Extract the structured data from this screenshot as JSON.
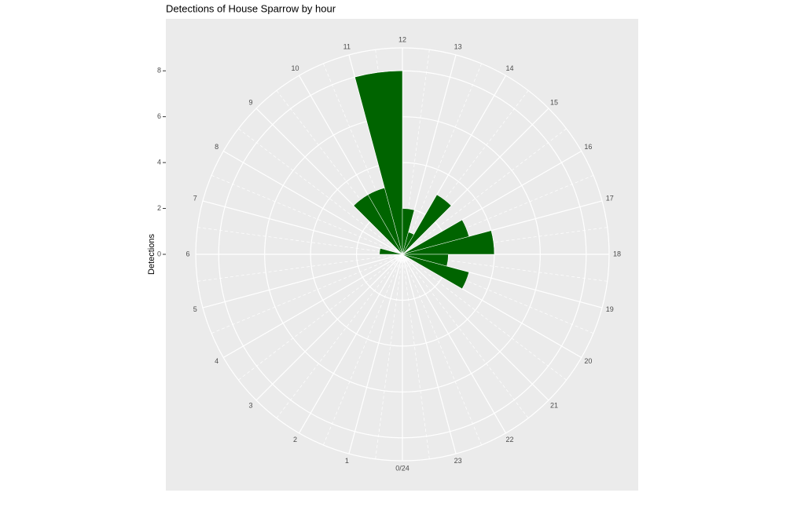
{
  "chart_data": {
    "type": "polar-bar",
    "title": "Detections of House Sparrow by hour",
    "y_label": "Detections",
    "categories": [
      "0/24",
      "1",
      "2",
      "3",
      "4",
      "5",
      "6",
      "7",
      "8",
      "9",
      "10",
      "11",
      "12",
      "13",
      "14",
      "15",
      "16",
      "17",
      "18",
      "19",
      "20",
      "21",
      "22",
      "23"
    ],
    "values": [
      0,
      0,
      0,
      0,
      0,
      0,
      1,
      0,
      0,
      3,
      3,
      8,
      2,
      1,
      3,
      0,
      3,
      4,
      2,
      3,
      0,
      0,
      0,
      0
    ],
    "color": "#006400",
    "xlim": [
      0,
      24
    ],
    "ylim": [
      0,
      9
    ],
    "yticks": [
      0,
      2,
      4,
      6,
      8
    ],
    "grid": true
  }
}
